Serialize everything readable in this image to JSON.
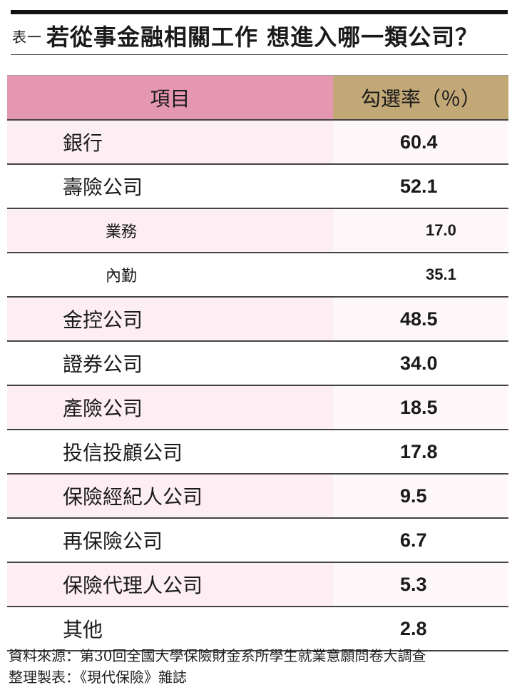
{
  "title": {
    "prefix": "表一",
    "main": "若從事金融相關工作 想進入哪一類公司？"
  },
  "table": {
    "header": {
      "item": "項目",
      "value": "勾選率（％）"
    },
    "rows": [
      {
        "label": "銀行",
        "value": "60.4"
      },
      {
        "label": "壽險公司",
        "value": "52.1"
      },
      {
        "label": "業務",
        "value": "17.0"
      },
      {
        "label": "內勤",
        "value": "35.1"
      },
      {
        "label": "金控公司",
        "value": "48.5"
      },
      {
        "label": "證券公司",
        "value": "34.0"
      },
      {
        "label": "產險公司",
        "value": "18.5"
      },
      {
        "label": "投信投顧公司",
        "value": "17.8"
      },
      {
        "label": "保險經紀人公司",
        "value": "9.5"
      },
      {
        "label": "再保險公司",
        "value": "6.7"
      },
      {
        "label": "保險代理人公司",
        "value": "5.3"
      },
      {
        "label": "其他",
        "value": "2.8"
      }
    ]
  },
  "source": {
    "line1": "資料來源：第30回全國大學保險財金系所學生就業意願問卷大調查",
    "line2": "整理製表：《現代保險》雜誌"
  }
}
